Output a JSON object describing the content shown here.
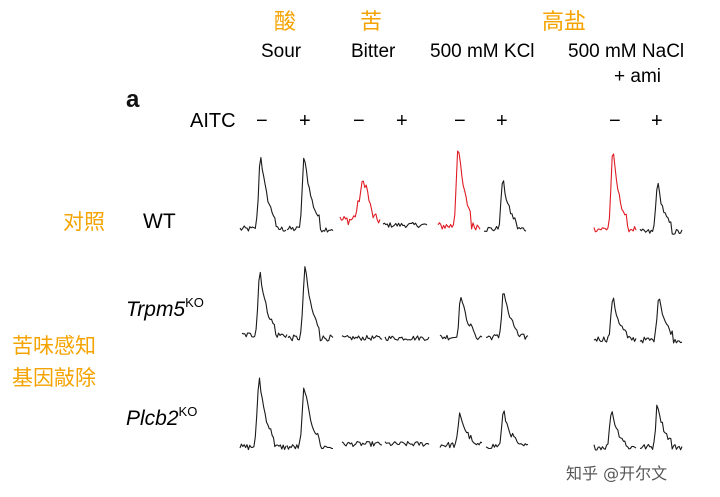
{
  "header_zh": {
    "sour": "酸",
    "bitter": "苦",
    "high_salt": "高盐"
  },
  "conditions": {
    "sour": "Sour",
    "bitter": "Bitter",
    "kcl": "500 mM KCl",
    "nacl_line1": "500 mM NaCl",
    "nacl_line2": "+ ami"
  },
  "panel_label": "a",
  "aitc": {
    "label": "AITC",
    "minus": "−",
    "plus": "+"
  },
  "rows": {
    "wt": "WT",
    "trpm5_gene": "Trpm5",
    "trpm5_sup": "KO",
    "plcb2_gene": "Plcb2",
    "plcb2_sup": "KO"
  },
  "side_labels_zh": {
    "control": "对照",
    "ko_line1": "苦味感知",
    "ko_line2": "基因敲除"
  },
  "colors": {
    "trace": "#1a1a1a",
    "highlight": "#e01b24",
    "chinese_label": "#f5a300"
  },
  "watermark": "知乎 @开尔文"
}
